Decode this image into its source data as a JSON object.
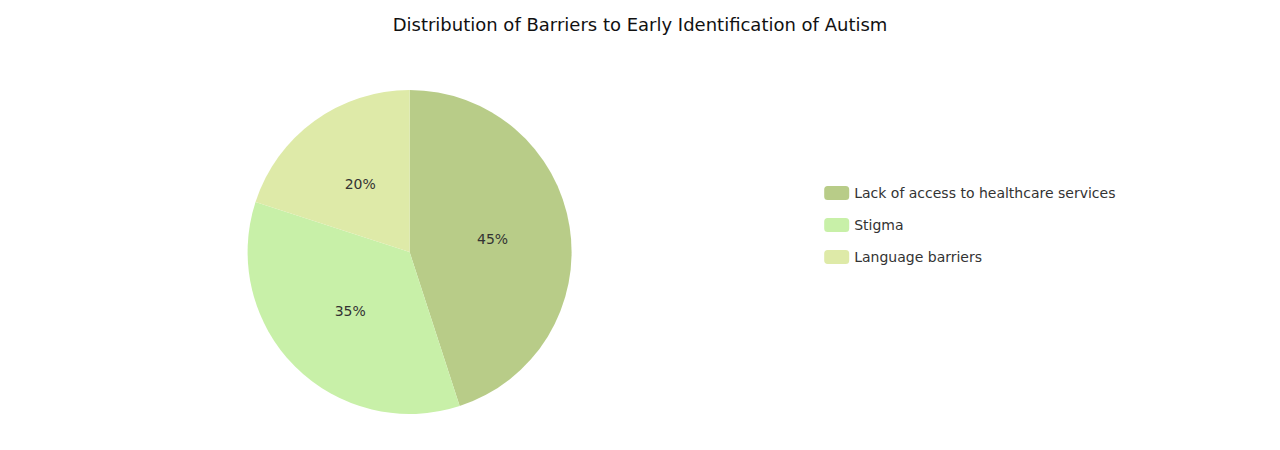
{
  "chart_data": {
    "type": "pie",
    "title": "Distribution of Barriers to Early Identification of Autism",
    "categories": [
      "Lack of access to healthcare services",
      "Stigma",
      "Language barriers"
    ],
    "values": [
      45,
      35,
      20
    ],
    "value_labels": [
      "45%",
      "35%",
      "20%"
    ],
    "colors": [
      "#b8cc88",
      "#c8f0a8",
      "#deeaa8"
    ],
    "data_labels": true,
    "legend": "right"
  }
}
